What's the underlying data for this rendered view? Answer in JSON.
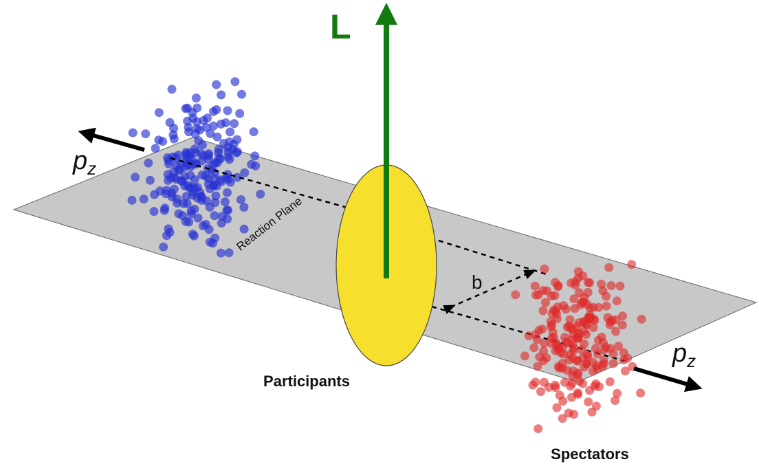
{
  "labels": {
    "angular_momentum": "L",
    "pz_left": {
      "base": "p",
      "sub": "z"
    },
    "pz_right": {
      "base": "p",
      "sub": "z"
    },
    "reaction_plane": "Reaction Plane",
    "impact_parameter": "b",
    "participants": "Participants",
    "spectators": "Spectators"
  }
}
